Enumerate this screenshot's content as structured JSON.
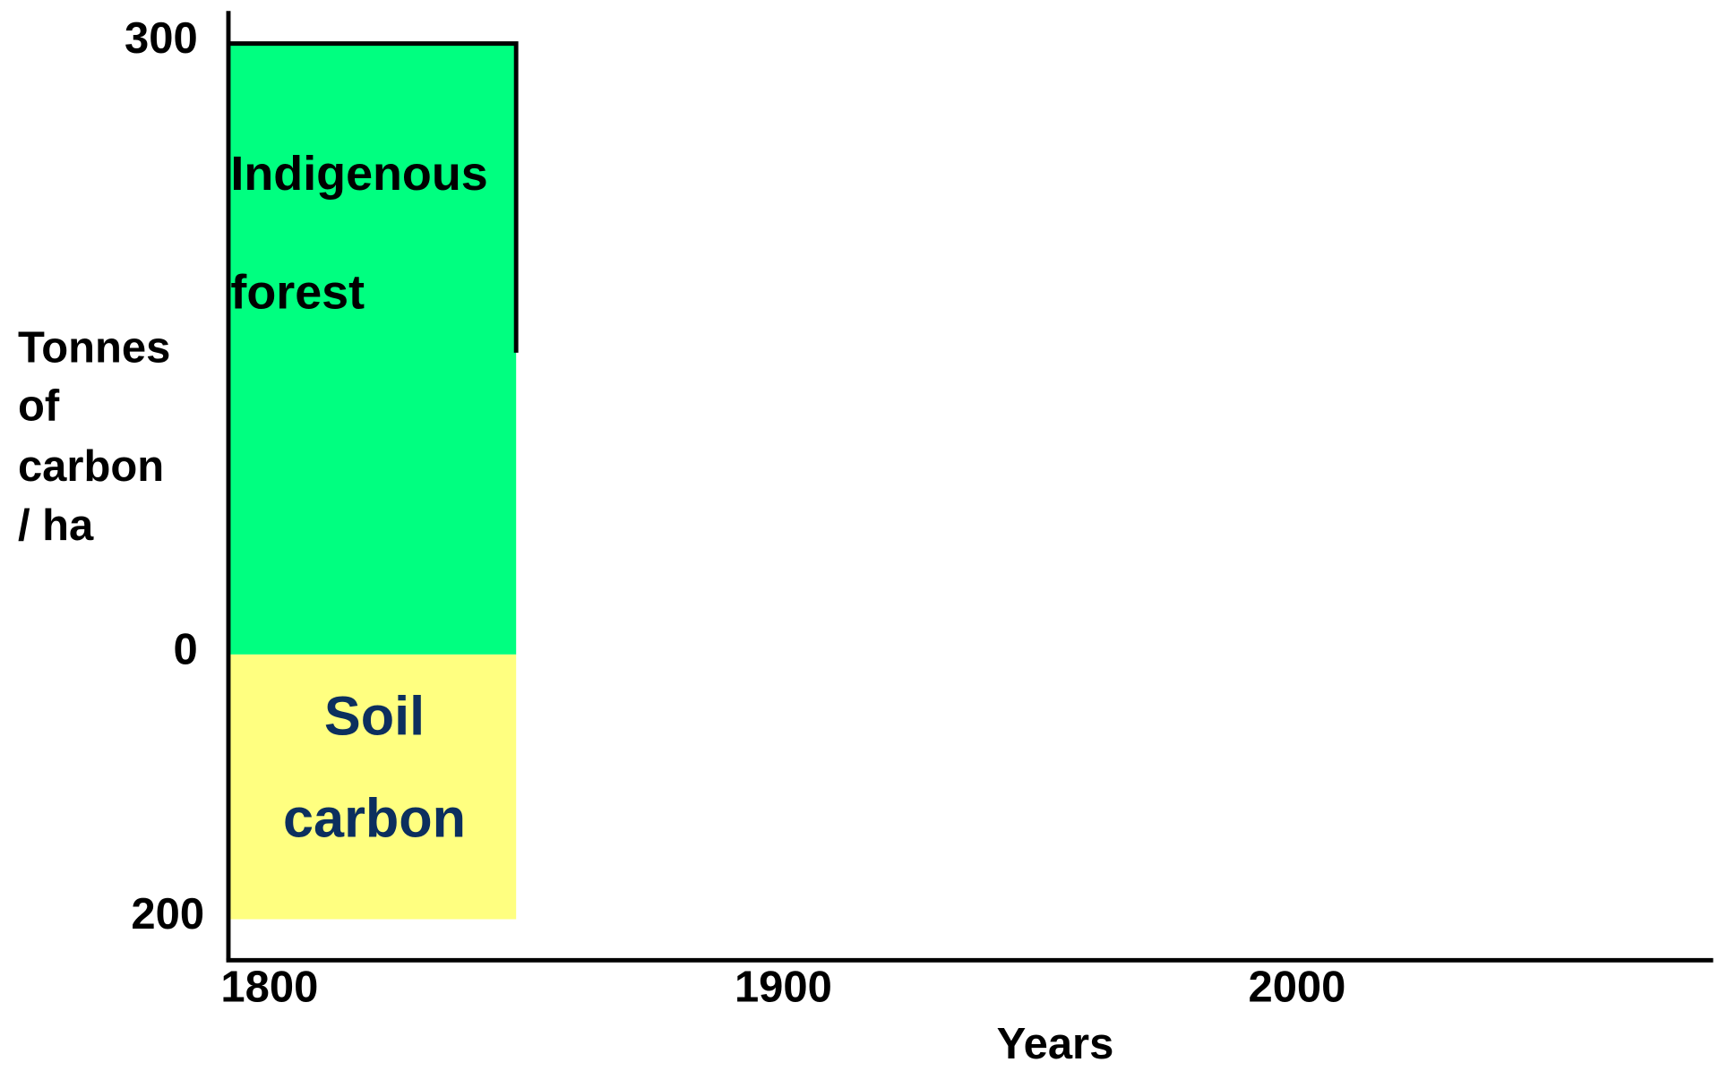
{
  "chart_data": {
    "type": "area",
    "ylabel": [
      "Tonnes",
      "of",
      "carbon",
      "/ ha"
    ],
    "xlabel": "Years",
    "annotations": [
      "Indigenous",
      "forest",
      "Soil",
      "carbon"
    ],
    "xlim": [
      1792,
      2081
    ],
    "xticks": [
      1800,
      1900,
      2000
    ],
    "ylim": [
      0,
      316
    ],
    "yticks": [
      0,
      300
    ],
    "y2lim": [
      0,
      231
    ],
    "y2ticks": [
      200
    ],
    "series": [
      {
        "color": "#00ff80",
        "x": [
          1792,
          1848
        ],
        "values": [
          300,
          300
        ]
      },
      {
        "color": "#ffff80",
        "x": [
          1792,
          1848
        ],
        "values": [
          200,
          200
        ],
        "axis": "y2"
      }
    ]
  }
}
